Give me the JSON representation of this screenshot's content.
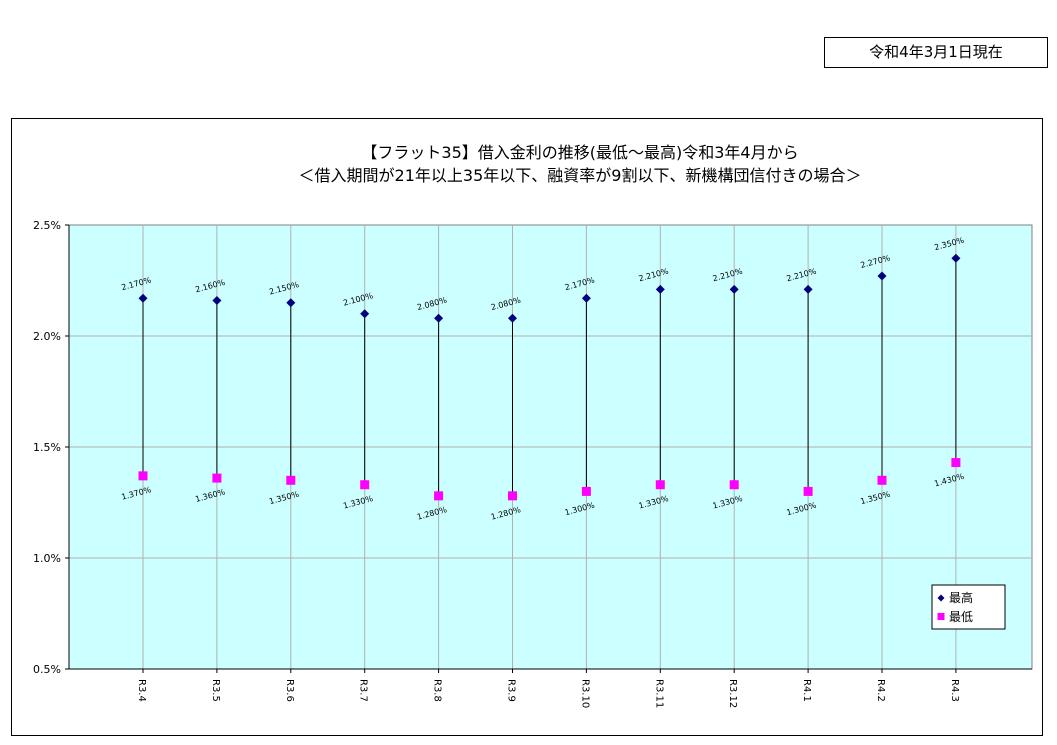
{
  "header": {
    "as_of_date": "令和4年3月1日現在"
  },
  "chart_data": {
    "type": "scatter",
    "title": "【フラット35】借入金利の推移(最低～最高)令和3年4月から",
    "subtitle": "＜借入期間が21年以上35年以下、融資率が9割以下、新機構団信付きの場合＞",
    "xlabel": "",
    "ylabel": "",
    "categories": [
      "R3.4",
      "R3.5",
      "R3.6",
      "R3.7",
      "R3.8",
      "R3.9",
      "R3.10",
      "R3.11",
      "R3.12",
      "R4.1",
      "R4.2",
      "R4.3"
    ],
    "series": [
      {
        "name": "最高",
        "values": [
          2.17,
          2.16,
          2.15,
          2.1,
          2.08,
          2.08,
          2.17,
          2.21,
          2.21,
          2.21,
          2.27,
          2.35
        ],
        "labels": [
          "2.170%",
          "2.160%",
          "2.150%",
          "2.100%",
          "2.080%",
          "2.080%",
          "2.170%",
          "2.210%",
          "2.210%",
          "2.210%",
          "2.270%",
          "2.350%"
        ],
        "color": "#000080",
        "marker": "diamond"
      },
      {
        "name": "最低",
        "values": [
          1.37,
          1.36,
          1.35,
          1.33,
          1.28,
          1.28,
          1.3,
          1.33,
          1.33,
          1.3,
          1.35,
          1.43
        ],
        "labels": [
          "1.370%",
          "1.360%",
          "1.350%",
          "1.330%",
          "1.280%",
          "1.280%",
          "1.300%",
          "1.330%",
          "1.330%",
          "1.300%",
          "1.350%",
          "1.430%"
        ],
        "color": "#ff00ff",
        "marker": "square"
      }
    ],
    "ylim": [
      0.5,
      2.5
    ],
    "yticks": [
      0.5,
      1.0,
      1.5,
      2.0,
      2.5
    ],
    "ytick_labels": [
      "0.5%",
      "1.0%",
      "1.5%",
      "2.0%",
      "2.5%"
    ],
    "grid": true,
    "legend_position": "bottom-right",
    "plot_background": "#ccffff",
    "gridline_color": "#b0b0b0"
  }
}
